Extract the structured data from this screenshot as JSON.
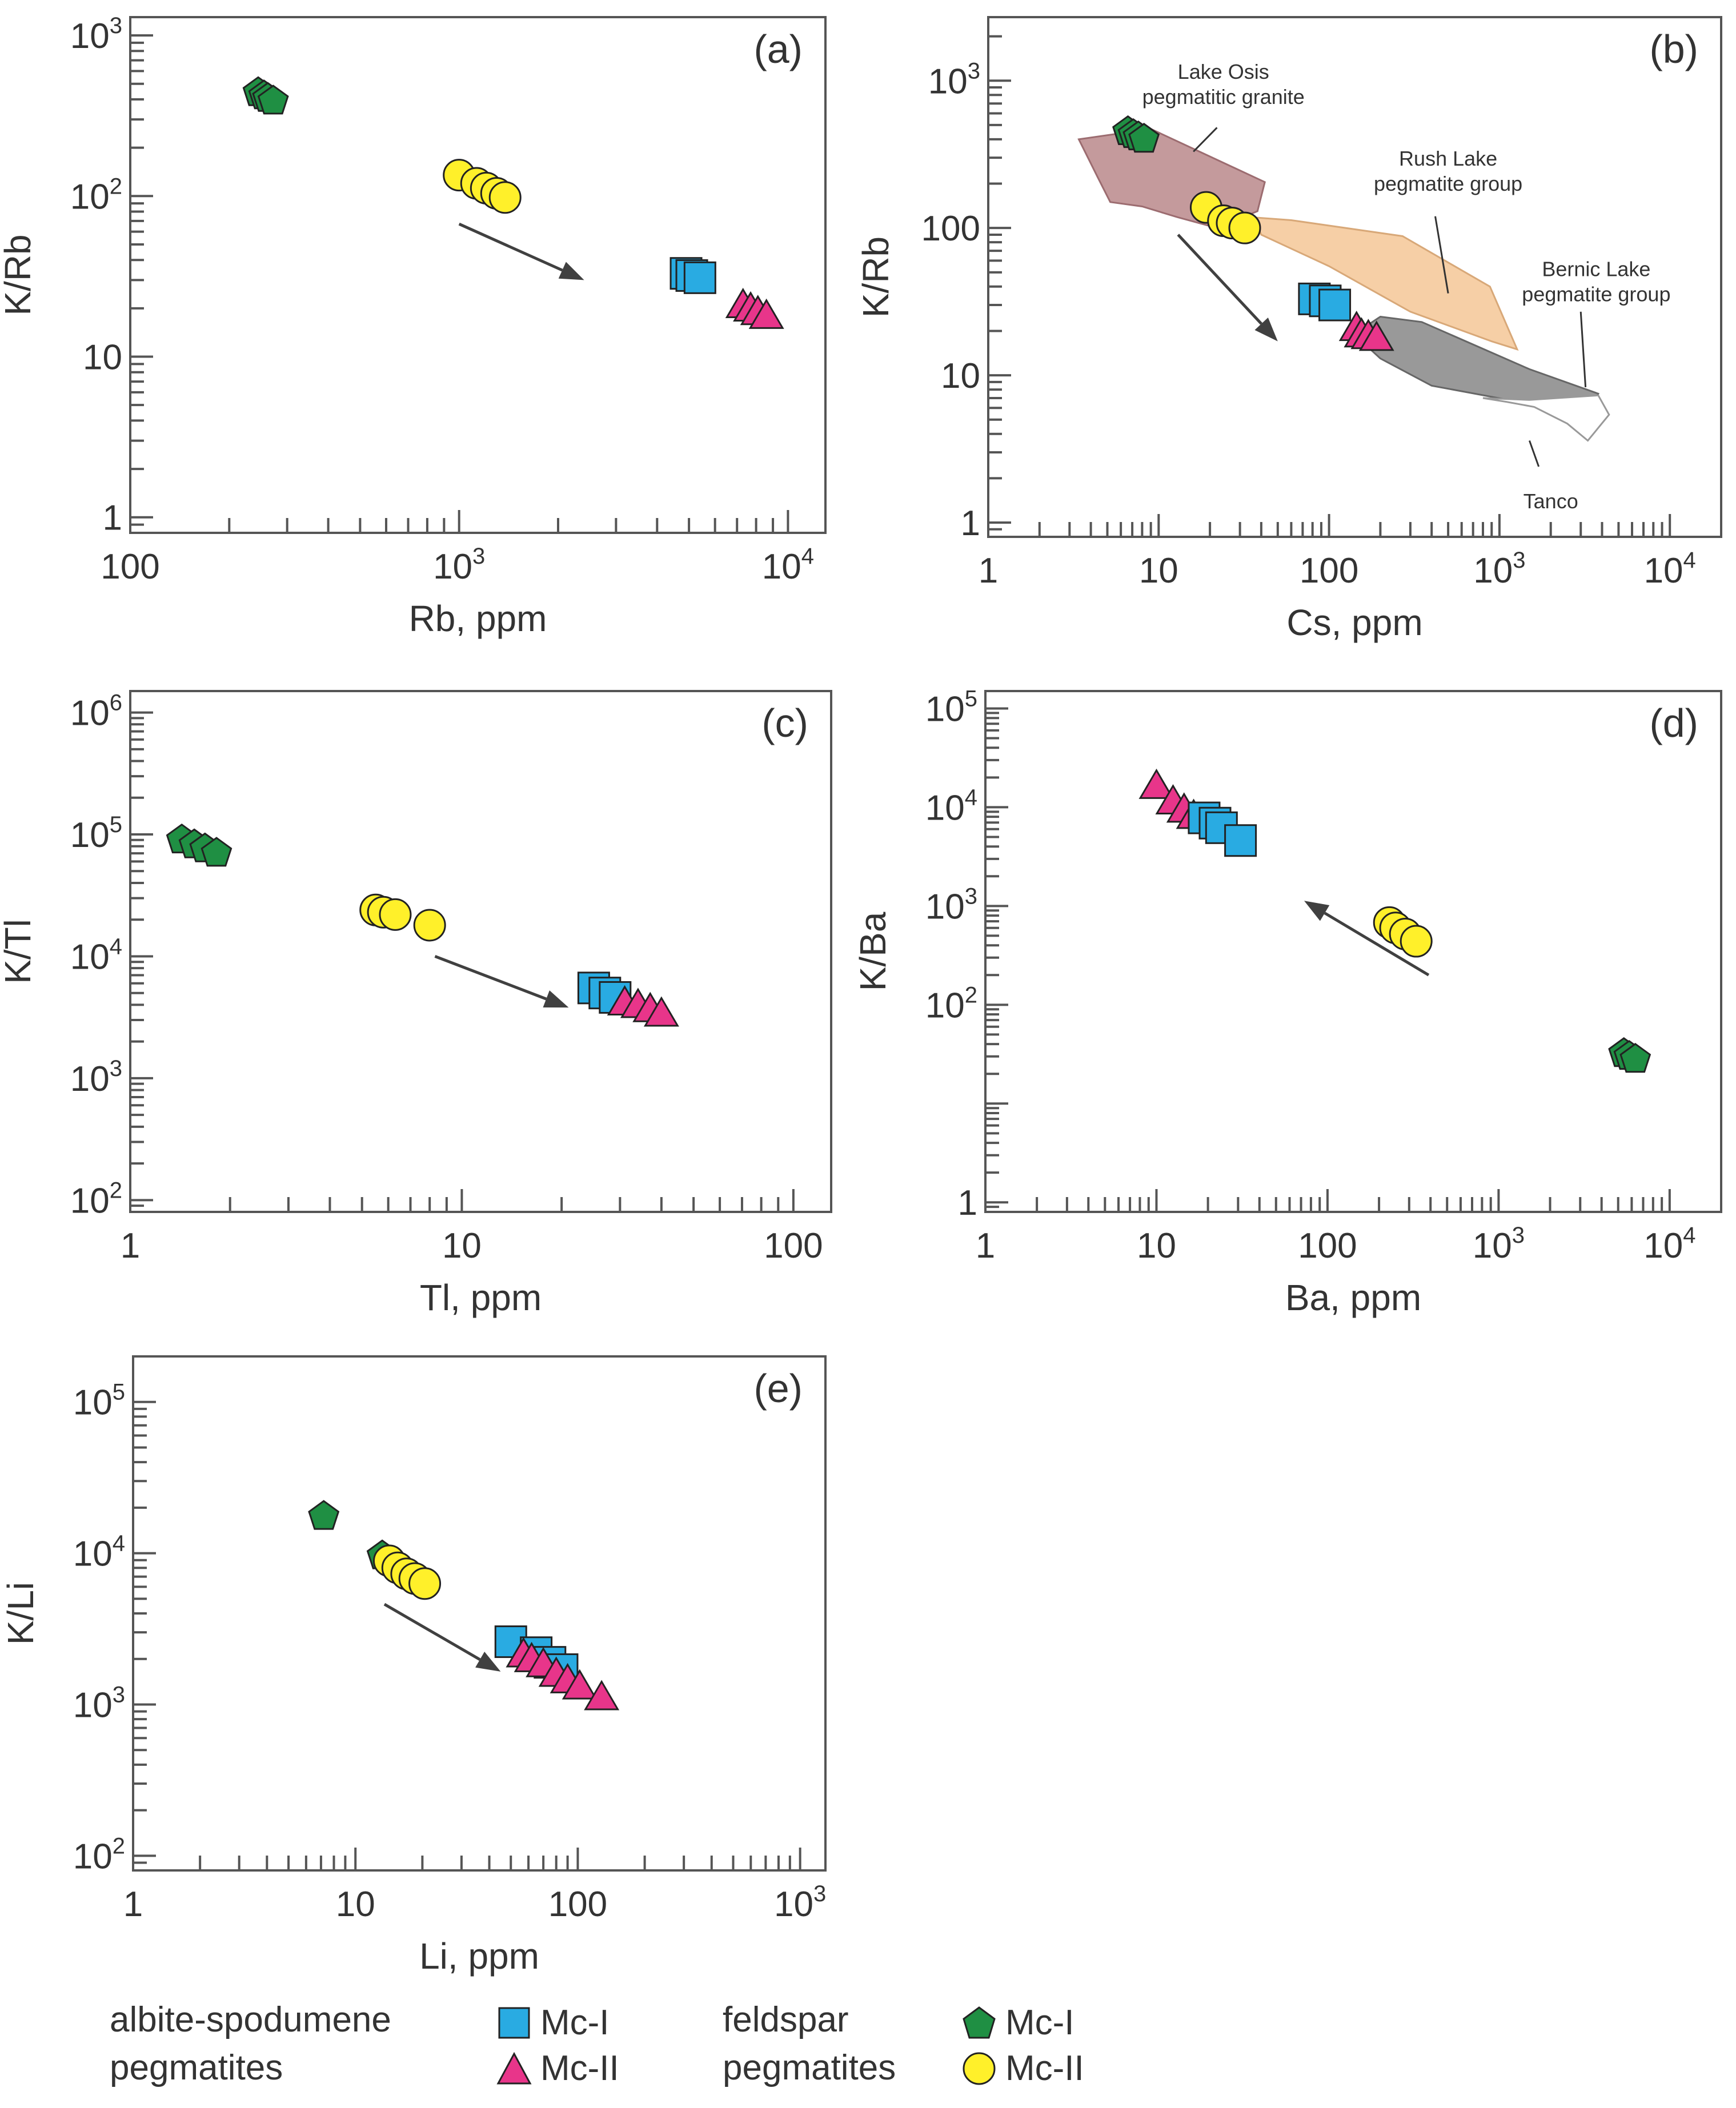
{
  "chart_data": [
    {
      "id": "a",
      "type": "scatter",
      "panel_label": "(a)",
      "xlabel": "Rb, ppm",
      "ylabel": "K/Rb",
      "x_scale": "log",
      "y_scale": "log",
      "xlim": [
        100,
        13000
      ],
      "ylim": [
        0.8,
        1300
      ],
      "x_ticks": [
        {
          "v": 100,
          "b": "100",
          "e": ""
        },
        {
          "v": 1000,
          "b": "10",
          "e": "3"
        },
        {
          "v": 10000,
          "b": "10",
          "e": "4"
        }
      ],
      "y_ticks": [
        {
          "v": 1,
          "b": "1",
          "e": ""
        },
        {
          "v": 10,
          "b": "10",
          "e": ""
        },
        {
          "v": 100,
          "b": "10",
          "e": "2"
        },
        {
          "v": 1000,
          "b": "10",
          "e": "3"
        }
      ],
      "series": [
        {
          "name": "feldspar Mc-I",
          "marker": "pentagon",
          "points": [
            [
              245,
              440
            ],
            [
              255,
              420
            ],
            [
              262,
              405
            ],
            [
              272,
              390
            ]
          ]
        },
        {
          "name": "feldspar Mc-II",
          "marker": "circle",
          "points": [
            [
              1000,
              135
            ],
            [
              1130,
              120
            ],
            [
              1210,
              112
            ],
            [
              1300,
              104
            ],
            [
              1380,
              98
            ]
          ]
        },
        {
          "name": "albite-spodumene Mc-I",
          "marker": "square",
          "points": [
            [
              4900,
              33
            ],
            [
              5100,
              32
            ],
            [
              5400,
              31
            ]
          ]
        },
        {
          "name": "albite-spodumene Mc-II",
          "marker": "triangle",
          "points": [
            [
              7300,
              21
            ],
            [
              7700,
              20
            ],
            [
              8100,
              19
            ],
            [
              8600,
              18
            ]
          ]
        }
      ],
      "arrow": {
        "from": [
          1000,
          67
        ],
        "to": [
          2400,
          30
        ]
      }
    },
    {
      "id": "b",
      "type": "scatter",
      "panel_label": "(b)",
      "xlabel": "Cs, ppm",
      "ylabel": "K/Rb",
      "x_scale": "log",
      "y_scale": "log",
      "xlim": [
        1,
        20000
      ],
      "ylim": [
        0.8,
        2700
      ],
      "x_ticks": [
        {
          "v": 1,
          "b": "1",
          "e": ""
        },
        {
          "v": 10,
          "b": "10",
          "e": ""
        },
        {
          "v": 100,
          "b": "100",
          "e": ""
        },
        {
          "v": 1000,
          "b": "10",
          "e": "3"
        },
        {
          "v": 10000,
          "b": "10",
          "e": "4"
        }
      ],
      "y_ticks": [
        {
          "v": 1,
          "b": "1",
          "e": ""
        },
        {
          "v": 10,
          "b": "10",
          "e": ""
        },
        {
          "v": 100,
          "b": "100",
          "e": ""
        },
        {
          "v": 1000,
          "b": "10",
          "e": "3"
        }
      ],
      "fields": [
        {
          "name": "Lake Osis pegmatitic granite",
          "color": "#c49a9c",
          "stroke": "#9c6c70",
          "polygon": [
            [
              3.4,
              400
            ],
            [
              9,
              470
            ],
            [
              42,
              205
            ],
            [
              38,
              130
            ],
            [
              22,
              100
            ],
            [
              13,
              118
            ],
            [
              8,
              140
            ],
            [
              5.2,
              150
            ],
            [
              4.4,
              220
            ]
          ]
        },
        {
          "name": "Rush Lake pegmatite group",
          "color": "#f6cfa6",
          "stroke": "#d8a878",
          "polygon": [
            [
              36,
              118
            ],
            [
              60,
              113
            ],
            [
              270,
              88
            ],
            [
              880,
              40
            ],
            [
              1270,
              15
            ],
            [
              900,
              17
            ],
            [
              300,
              27
            ],
            [
              100,
              55
            ],
            [
              40,
              90
            ]
          ]
        },
        {
          "name": "Bernic Lake pegmatite group",
          "color": "#999999",
          "stroke": "#666666",
          "polygon": [
            [
              200,
              25
            ],
            [
              350,
              23
            ],
            [
              1500,
              11
            ],
            [
              3800,
              7.5
            ],
            [
              3600,
              6.6
            ],
            [
              1500,
              6.4
            ],
            [
              400,
              8.5
            ],
            [
              200,
              13
            ],
            [
              140,
              19
            ]
          ]
        },
        {
          "name": "Tanco",
          "color": "#ffffff",
          "stroke": "#999999",
          "polygon": [
            [
              800,
              7
            ],
            [
              1500,
              6.8
            ],
            [
              3800,
              7.3
            ],
            [
              4400,
              5.4
            ],
            [
              3300,
              3.6
            ],
            [
              2500,
              4.7
            ],
            [
              1600,
              6.1
            ],
            [
              1100,
              6.6
            ]
          ]
        }
      ],
      "field_labels": [
        {
          "text": [
            "Lake Osis",
            "pegmatitic granite"
          ],
          "at": [
            24,
            1030
          ],
          "leader": [
            [
              22,
              480
            ],
            [
              16,
              330
            ]
          ]
        },
        {
          "text": [
            "Rush Lake",
            "pegmatite group"
          ],
          "at": [
            500,
            265
          ],
          "leader": [
            [
              420,
              120
            ],
            [
              500,
              36
            ]
          ]
        },
        {
          "text": [
            "Bernic Lake",
            "pegmatite group"
          ],
          "at": [
            3700,
            47
          ],
          "leader": [
            [
              3000,
              27
            ],
            [
              3200,
              8.3
            ]
          ]
        },
        {
          "text": [
            "Tanco"
          ],
          "at": [
            2000,
            1.25
          ],
          "leader": [
            [
              1700,
              2.4
            ],
            [
              1500,
              3.6
            ]
          ]
        }
      ],
      "series": [
        {
          "name": "feldspar Mc-I",
          "marker": "pentagon",
          "points": [
            [
              6.6,
              450
            ],
            [
              7.1,
              430
            ],
            [
              7.6,
              415
            ],
            [
              8.2,
              400
            ]
          ]
        },
        {
          "name": "feldspar Mc-II",
          "marker": "circle",
          "points": [
            [
              19,
              138
            ],
            [
              24,
              112
            ],
            [
              27,
              108
            ],
            [
              32,
              100
            ]
          ]
        },
        {
          "name": "albite-spodumene Mc-I",
          "marker": "square",
          "points": [
            [
              82,
              33
            ],
            [
              95,
              32
            ],
            [
              108,
              30
            ]
          ]
        },
        {
          "name": "albite-spodumene Mc-II",
          "marker": "triangle",
          "points": [
            [
              145,
              21
            ],
            [
              155,
              19
            ],
            [
              170,
              18.5
            ],
            [
              190,
              18
            ]
          ]
        }
      ],
      "arrow": {
        "from": [
          13,
          90
        ],
        "to": [
          50,
          17
        ]
      }
    },
    {
      "id": "c",
      "type": "scatter",
      "panel_label": "(c)",
      "xlabel": "Tl, ppm",
      "ylabel": "K/Tl",
      "x_scale": "log",
      "y_scale": "log",
      "xlim": [
        1,
        130
      ],
      "ylim": [
        80,
        1500000
      ],
      "x_ticks": [
        {
          "v": 1,
          "b": "1",
          "e": ""
        },
        {
          "v": 10,
          "b": "10",
          "e": ""
        },
        {
          "v": 100,
          "b": "100",
          "e": ""
        }
      ],
      "y_ticks": [
        {
          "v": 100,
          "b": "10",
          "e": "2"
        },
        {
          "v": 1000,
          "b": "10",
          "e": "3"
        },
        {
          "v": 10000,
          "b": "10",
          "e": "4"
        },
        {
          "v": 100000,
          "b": "10",
          "e": "5"
        },
        {
          "v": 1000000,
          "b": "10",
          "e": "6"
        }
      ],
      "series": [
        {
          "name": "feldspar Mc-I",
          "marker": "pentagon",
          "points": [
            [
              1.43,
              90000
            ],
            [
              1.56,
              82000
            ],
            [
              1.68,
              76000
            ],
            [
              1.82,
              70000
            ]
          ]
        },
        {
          "name": "feldspar Mc-II",
          "marker": "circle",
          "points": [
            [
              5.5,
              24000
            ],
            [
              5.8,
              23000
            ],
            [
              6.3,
              22000
            ],
            [
              8,
              18000
            ]
          ]
        },
        {
          "name": "albite-spodumene Mc-I",
          "marker": "square",
          "points": [
            [
              25,
              5500
            ],
            [
              27,
              5000
            ],
            [
              29,
              4600
            ]
          ]
        },
        {
          "name": "albite-spodumene Mc-II",
          "marker": "triangle",
          "points": [
            [
              31,
              4200
            ],
            [
              34,
              4000
            ],
            [
              37,
              3700
            ],
            [
              40,
              3400
            ]
          ]
        }
      ],
      "arrow": {
        "from": [
          8.3,
          10000
        ],
        "to": [
          21,
          3800
        ]
      }
    },
    {
      "id": "d",
      "type": "scatter",
      "panel_label": "(d)",
      "xlabel": "Ba, ppm",
      "ylabel": "K/Ba",
      "x_scale": "log",
      "y_scale": "log",
      "xlim": [
        1,
        20000
      ],
      "ylim": [
        0.8,
        150000
      ],
      "x_ticks": [
        {
          "v": 1,
          "b": "1",
          "e": ""
        },
        {
          "v": 10,
          "b": "10",
          "e": ""
        },
        {
          "v": 100,
          "b": "100",
          "e": ""
        },
        {
          "v": 1000,
          "b": "10",
          "e": "3"
        },
        {
          "v": 10000,
          "b": "10",
          "e": "4"
        }
      ],
      "y_ticks": [
        {
          "v": 1,
          "b": "1",
          "e": ""
        },
        {
          "v": 100,
          "b": "10",
          "e": "2"
        },
        {
          "v": 1000,
          "b": "10",
          "e": "3"
        },
        {
          "v": 10000,
          "b": "10",
          "e": "4"
        },
        {
          "v": 100000,
          "b": "10",
          "e": "5"
        }
      ],
      "series": [
        {
          "name": "albite-spodumene Mc-II",
          "marker": "triangle",
          "points": [
            [
              10,
              16500
            ],
            [
              12.5,
              11500
            ],
            [
              14.5,
              9500
            ],
            [
              16.5,
              8200
            ]
          ]
        },
        {
          "name": "albite-spodumene Mc-I",
          "marker": "square",
          "points": [
            [
              19,
              7800
            ],
            [
              22,
              6900
            ],
            [
              24,
              6200
            ],
            [
              31,
              4600
            ]
          ]
        },
        {
          "name": "feldspar Mc-II",
          "marker": "circle",
          "points": [
            [
              230,
              680
            ],
            [
              250,
              600
            ],
            [
              285,
              520
            ],
            [
              330,
              440
            ]
          ]
        },
        {
          "name": "feldspar Mc-I",
          "marker": "pentagon",
          "points": [
            [
              5400,
              32
            ],
            [
              5800,
              30
            ],
            [
              6300,
              28
            ]
          ]
        }
      ],
      "arrow": {
        "from": [
          390,
          200
        ],
        "to": [
          73,
          1130
        ]
      }
    },
    {
      "id": "e",
      "type": "scatter",
      "panel_label": "(e)",
      "xlabel": "Li, ppm",
      "ylabel": "K/Li",
      "x_scale": "log",
      "y_scale": "log",
      "xlim": [
        1,
        1300
      ],
      "ylim": [
        80,
        200000
      ],
      "x_ticks": [
        {
          "v": 1,
          "b": "1",
          "e": ""
        },
        {
          "v": 10,
          "b": "10",
          "e": ""
        },
        {
          "v": 100,
          "b": "100",
          "e": ""
        },
        {
          "v": 1000,
          "b": "10",
          "e": "3"
        }
      ],
      "y_ticks": [
        {
          "v": 100,
          "b": "10",
          "e": "2"
        },
        {
          "v": 1000,
          "b": "10",
          "e": "3"
        },
        {
          "v": 10000,
          "b": "10",
          "e": "4"
        },
        {
          "v": 100000,
          "b": "10",
          "e": "5"
        }
      ],
      "series": [
        {
          "name": "feldspar Mc-I",
          "marker": "pentagon",
          "points": [
            [
              7.2,
              17500
            ],
            [
              13.2,
              9600
            ]
          ]
        },
        {
          "name": "feldspar Mc-II",
          "marker": "circle",
          "points": [
            [
              14.2,
              8900
            ],
            [
              15.5,
              8000
            ],
            [
              17,
              7300
            ],
            [
              18.5,
              6800
            ],
            [
              20.5,
              6300
            ]
          ]
        },
        {
          "name": "albite-spodumene Mc-I",
          "marker": "square",
          "points": [
            [
              50,
              2600
            ],
            [
              65,
              2200
            ],
            [
              75,
              1900
            ],
            [
              85,
              1700
            ]
          ]
        },
        {
          "name": "albite-spodumene Mc-II",
          "marker": "triangle",
          "points": [
            [
              57,
              2150
            ],
            [
              62,
              2000
            ],
            [
              70,
              1850
            ],
            [
              80,
              1600
            ],
            [
              90,
              1450
            ],
            [
              102,
              1320
            ],
            [
              128,
              1120
            ]
          ]
        }
      ],
      "arrow": {
        "from": [
          13.5,
          4600
        ],
        "to": [
          45,
          1650
        ]
      }
    }
  ],
  "legend": {
    "group1_title": [
      "albite-spodumene",
      "pegmatites"
    ],
    "group2_title": [
      "feldspar",
      "pegmatites"
    ],
    "items": [
      {
        "marker": "square",
        "label": "Mc-I"
      },
      {
        "marker": "triangle",
        "label": "Mc-II"
      },
      {
        "marker": "pentagon",
        "label": "Mc-I"
      },
      {
        "marker": "circle",
        "label": "Mc-II"
      }
    ]
  },
  "colors": {
    "square": "#29abe2",
    "triangle": "#e8358a",
    "pentagon": "#1f8f43",
    "circle": "#fff02a",
    "axis": "#555555",
    "text": "#333333",
    "arrow": "#404040"
  }
}
